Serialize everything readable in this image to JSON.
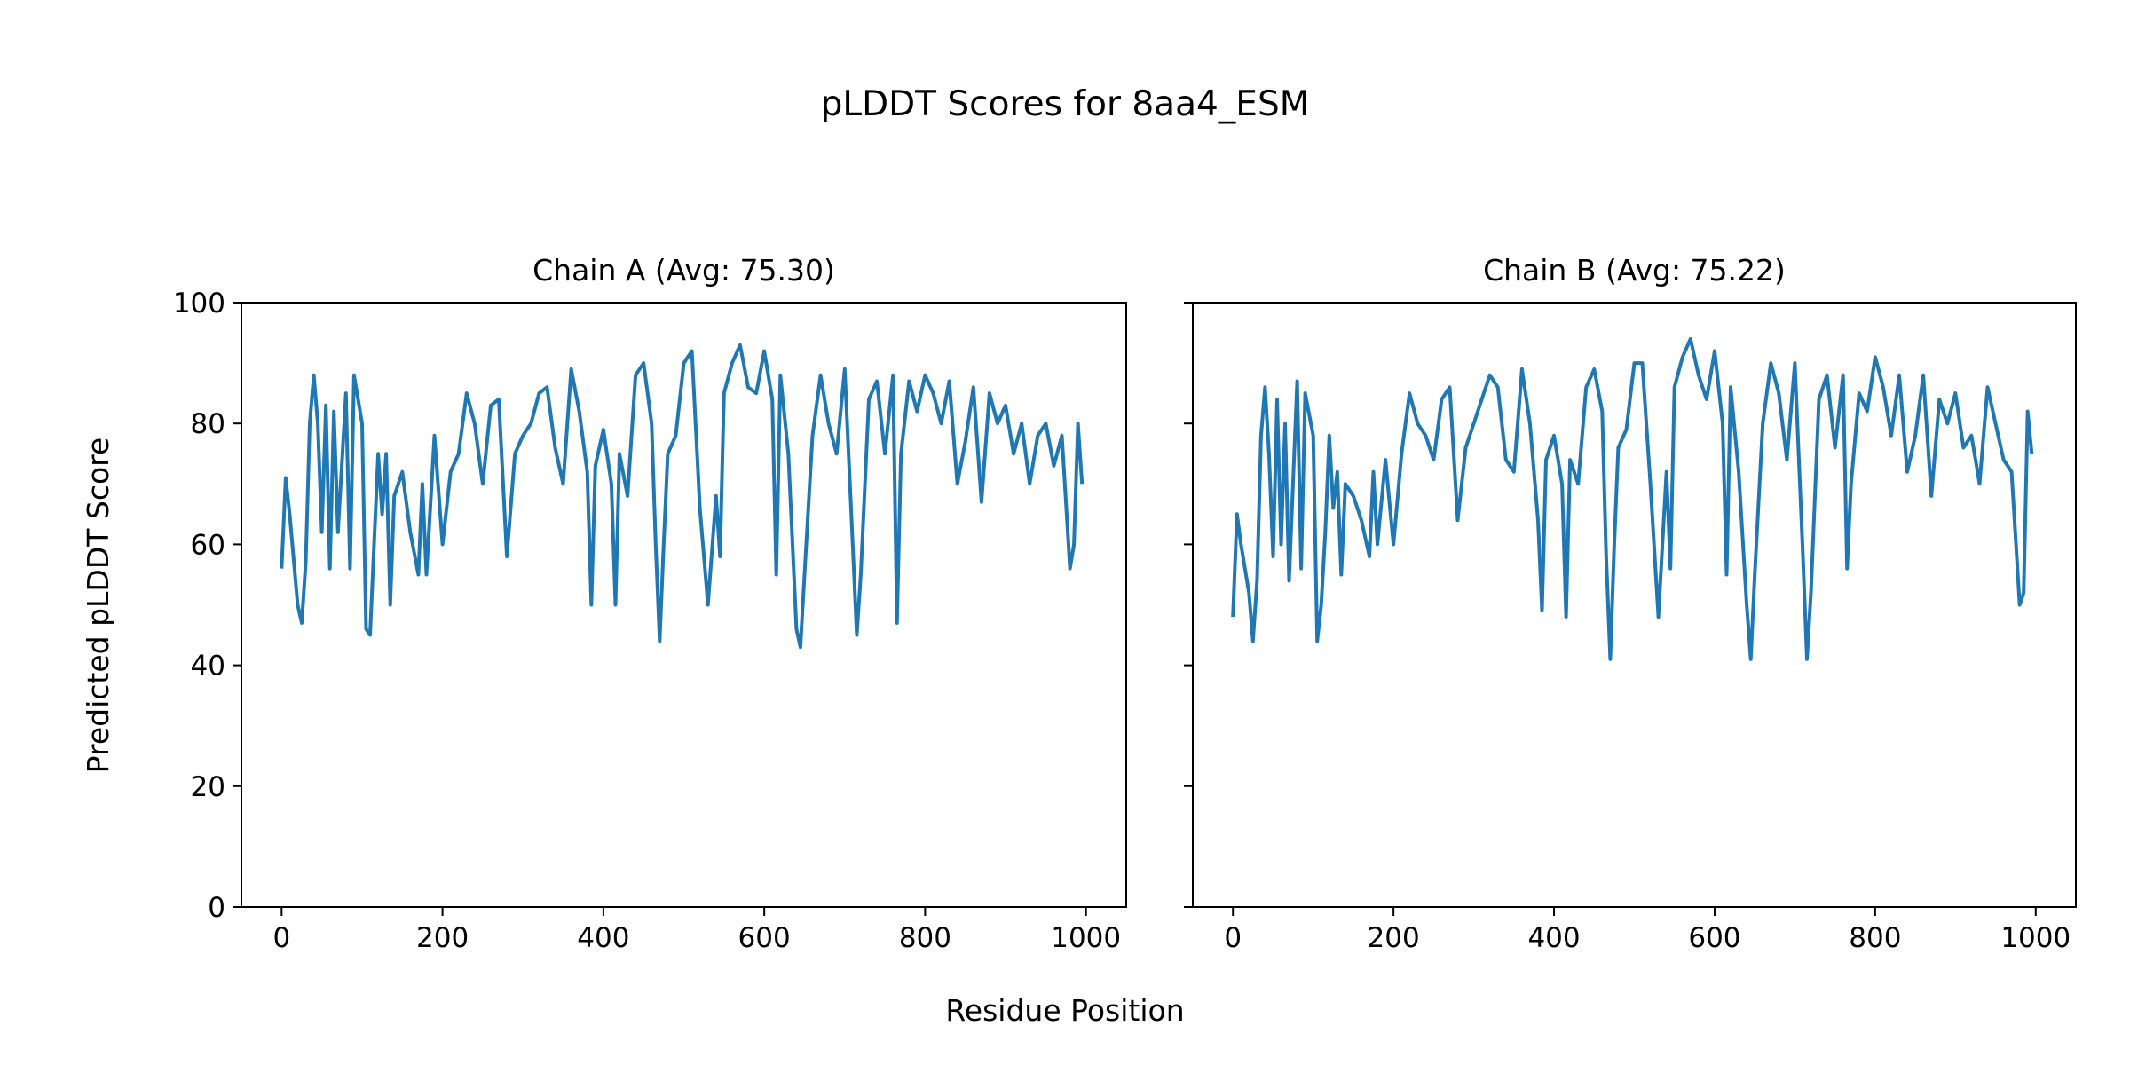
{
  "chart_data": {
    "type": "line",
    "title": "pLDDT Scores for 8aa4_ESM",
    "xlabel": "Residue Position",
    "ylabel": "Predicted pLDDT Score",
    "ylim": [
      0,
      100
    ],
    "xlim": [
      -50,
      1050
    ],
    "yticks": [
      "0",
      "20",
      "40",
      "60",
      "80",
      "100"
    ],
    "xticks": [
      "0",
      "200",
      "400",
      "600",
      "800",
      "1000"
    ],
    "line_color": "#1f77b4",
    "grid": false,
    "panels": [
      {
        "title": "Chain A (Avg: 75.30)",
        "x": [
          0,
          5,
          10,
          20,
          25,
          30,
          35,
          40,
          45,
          50,
          55,
          60,
          65,
          70,
          80,
          85,
          90,
          100,
          105,
          110,
          115,
          120,
          125,
          130,
          135,
          140,
          150,
          160,
          170,
          175,
          180,
          190,
          200,
          210,
          220,
          230,
          240,
          250,
          260,
          270,
          280,
          290,
          300,
          310,
          320,
          330,
          340,
          350,
          360,
          370,
          380,
          385,
          390,
          400,
          410,
          415,
          420,
          430,
          440,
          450,
          460,
          465,
          470,
          475,
          480,
          490,
          500,
          510,
          520,
          530,
          540,
          545,
          550,
          560,
          570,
          580,
          590,
          600,
          610,
          615,
          620,
          630,
          640,
          645,
          650,
          660,
          670,
          680,
          690,
          700,
          710,
          715,
          720,
          730,
          740,
          750,
          760,
          765,
          770,
          780,
          790,
          800,
          810,
          820,
          830,
          840,
          850,
          860,
          870,
          880,
          890,
          900,
          910,
          920,
          930,
          940,
          950,
          960,
          970,
          980,
          985,
          990,
          995
        ],
        "y": [
          56,
          71,
          65,
          50,
          47,
          57,
          80,
          88,
          80,
          62,
          83,
          56,
          82,
          62,
          85,
          56,
          88,
          80,
          46,
          45,
          60,
          75,
          65,
          75,
          50,
          68,
          72,
          62,
          55,
          70,
          55,
          78,
          60,
          72,
          75,
          85,
          80,
          70,
          83,
          84,
          58,
          75,
          78,
          80,
          85,
          86,
          76,
          70,
          89,
          82,
          72,
          50,
          73,
          79,
          70,
          50,
          75,
          68,
          88,
          90,
          80,
          60,
          44,
          60,
          75,
          78,
          90,
          92,
          66,
          50,
          68,
          58,
          85,
          90,
          93,
          86,
          85,
          92,
          84,
          55,
          88,
          75,
          46,
          43,
          55,
          78,
          88,
          80,
          75,
          89,
          60,
          45,
          55,
          84,
          87,
          75,
          88,
          47,
          75,
          87,
          82,
          88,
          85,
          80,
          87,
          70,
          77,
          86,
          67,
          85,
          80,
          83,
          75,
          80,
          70,
          78,
          80,
          73,
          78,
          56,
          60,
          80,
          70
        ]
      },
      {
        "title": "Chain B (Avg: 75.22)",
        "x": [
          0,
          5,
          10,
          20,
          25,
          30,
          35,
          40,
          45,
          50,
          55,
          60,
          65,
          70,
          80,
          85,
          90,
          100,
          105,
          110,
          115,
          120,
          125,
          130,
          135,
          140,
          150,
          160,
          170,
          175,
          180,
          190,
          200,
          210,
          220,
          230,
          240,
          250,
          260,
          270,
          280,
          290,
          300,
          310,
          320,
          330,
          340,
          350,
          360,
          370,
          380,
          385,
          390,
          400,
          410,
          415,
          420,
          430,
          440,
          450,
          460,
          465,
          470,
          475,
          480,
          490,
          500,
          510,
          520,
          530,
          540,
          545,
          550,
          560,
          570,
          580,
          590,
          600,
          610,
          615,
          620,
          630,
          640,
          645,
          650,
          660,
          670,
          680,
          690,
          700,
          710,
          715,
          720,
          730,
          740,
          750,
          760,
          765,
          770,
          780,
          790,
          800,
          810,
          820,
          830,
          840,
          850,
          860,
          870,
          880,
          890,
          900,
          910,
          920,
          930,
          940,
          950,
          960,
          970,
          980,
          985,
          990,
          995
        ],
        "y": [
          48,
          65,
          60,
          52,
          44,
          54,
          78,
          86,
          75,
          58,
          84,
          60,
          80,
          54,
          87,
          56,
          85,
          78,
          44,
          50,
          62,
          78,
          66,
          72,
          55,
          70,
          68,
          64,
          58,
          72,
          60,
          74,
          60,
          75,
          85,
          80,
          78,
          74,
          84,
          86,
          64,
          76,
          80,
          84,
          88,
          86,
          74,
          72,
          89,
          80,
          64,
          49,
          74,
          78,
          70,
          48,
          74,
          70,
          86,
          89,
          82,
          58,
          41,
          60,
          76,
          79,
          90,
          90,
          70,
          48,
          72,
          56,
          86,
          91,
          94,
          88,
          84,
          92,
          80,
          55,
          86,
          72,
          50,
          41,
          55,
          80,
          90,
          85,
          74,
          90,
          58,
          41,
          52,
          84,
          88,
          76,
          88,
          56,
          70,
          85,
          82,
          91,
          86,
          78,
          88,
          72,
          78,
          88,
          68,
          84,
          80,
          85,
          76,
          78,
          70,
          86,
          80,
          74,
          72,
          50,
          52,
          82,
          75
        ]
      }
    ]
  }
}
